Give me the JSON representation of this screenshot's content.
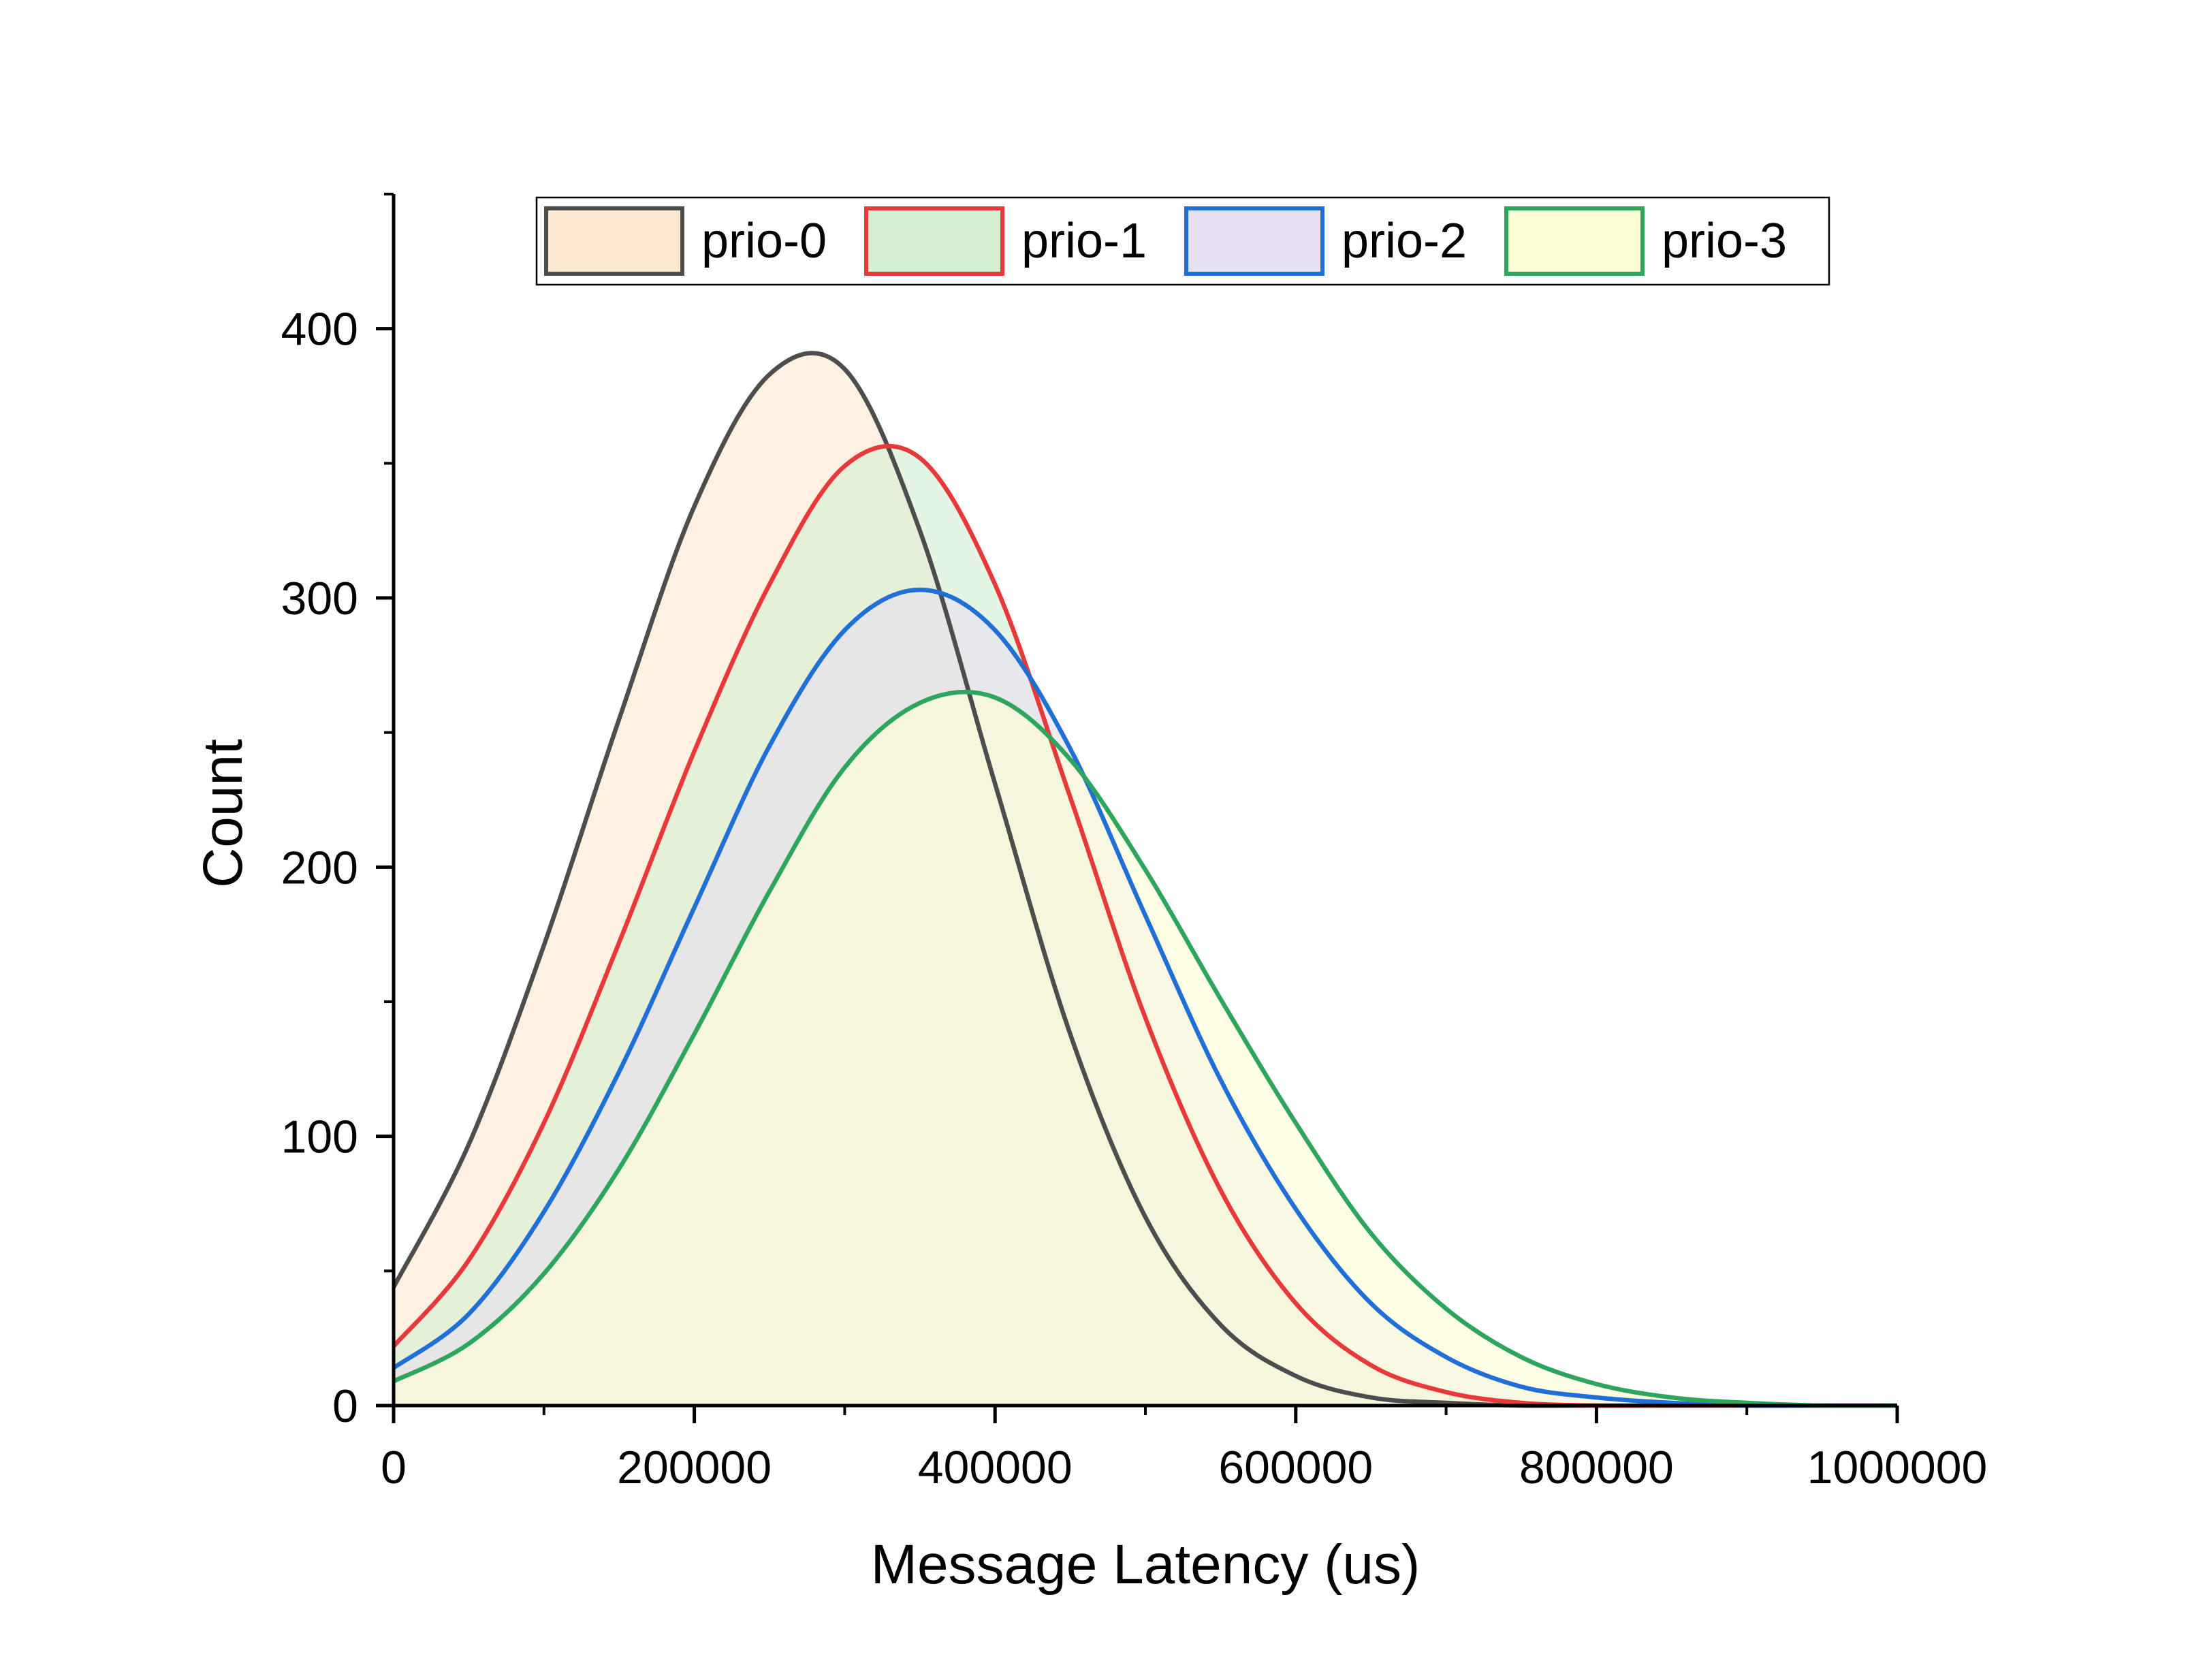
{
  "chart_data": {
    "type": "area",
    "title": "",
    "xlabel": "Message Latency (us)",
    "ylabel": "Count",
    "xlim": [
      0,
      1000000
    ],
    "ylim": [
      0,
      450
    ],
    "x_ticks": [
      0,
      200000,
      400000,
      600000,
      800000,
      1000000
    ],
    "x_tick_labels": [
      "0",
      "200000",
      "400000",
      "600000",
      "800000",
      "1000000"
    ],
    "y_ticks": [
      0,
      100,
      200,
      300,
      400
    ],
    "y_tick_labels": [
      "0",
      "100",
      "200",
      "300",
      "400"
    ],
    "grid": false,
    "legend": {
      "position": "top",
      "orientation": "horizontal"
    },
    "x": [
      0,
      50000,
      100000,
      150000,
      200000,
      250000,
      300000,
      350000,
      400000,
      450000,
      500000,
      550000,
      600000,
      650000,
      700000,
      750000,
      800000,
      850000,
      900000,
      950000,
      1000000
    ],
    "series": [
      {
        "name": "prio-0",
        "line_color": "#4d4d4d",
        "fill_color": "#fde9d0",
        "values": [
          44,
          97,
          171,
          255,
          334,
          383,
          385,
          325,
          231,
          138,
          70,
          30,
          11,
          3,
          1,
          0,
          0,
          0,
          0,
          0,
          0
        ]
      },
      {
        "name": "prio-1",
        "line_color": "#e8393a",
        "fill_color": "#d4efd2",
        "values": [
          22,
          54,
          105,
          172,
          243,
          305,
          349,
          352,
          305,
          226,
          144,
          80,
          38,
          15,
          5,
          1,
          0,
          0,
          0,
          0,
          0
        ]
      },
      {
        "name": "prio-2",
        "line_color": "#1f6fd6",
        "fill_color": "#e6e0f0",
        "values": [
          14,
          34,
          72,
          124,
          185,
          245,
          288,
          303,
          288,
          244,
          182,
          121,
          73,
          38,
          18,
          7,
          3,
          1,
          0,
          0,
          0
        ]
      },
      {
        "name": "prio-3",
        "line_color": "#2ea55c",
        "fill_color": "#ffffd6",
        "values": [
          9,
          23,
          49,
          88,
          138,
          191,
          237,
          261,
          263,
          240,
          199,
          151,
          105,
          64,
          36,
          18,
          8,
          3,
          1,
          0,
          0
        ]
      }
    ]
  }
}
